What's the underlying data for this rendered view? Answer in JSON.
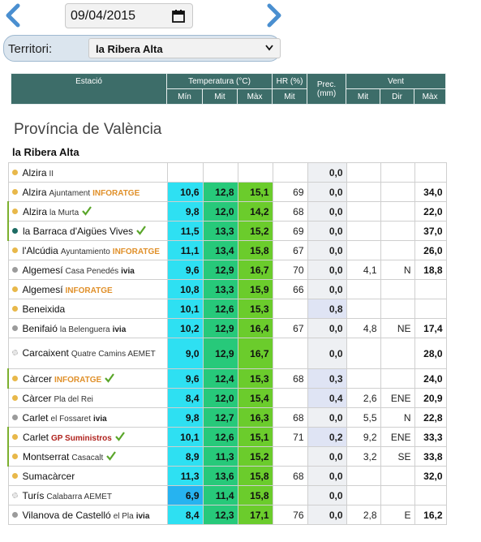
{
  "date": "09/04/2015",
  "territori": {
    "label": "Territori:",
    "selected": "la Ribera Alta"
  },
  "table_header": {
    "estacio": "Estació",
    "temperatura": "Temperatura (°C)",
    "hr": "HR (%)",
    "prec": "Prec.",
    "prec_unit": "(mm)",
    "vent": "Vent",
    "min": "Mín",
    "mit": "Mit",
    "max": "Màx",
    "hr_mit": "Mit",
    "vent_mit": "Mit",
    "vent_dir": "Dir",
    "vent_max": "Màx"
  },
  "region": "Província de València",
  "subregion": "la Ribera Alta",
  "colors": {
    "header": "#3d6d69",
    "min": "#22c9ee",
    "mit": "#24c574",
    "max": "#62c62a"
  },
  "rows": [
    {
      "name": "Alzira",
      "sub": "II",
      "agency": "",
      "dot": "#e8b84a",
      "min": "",
      "mit": "",
      "max": "",
      "hr": "",
      "prec": "0,0",
      "vmit": "",
      "vdir": "",
      "vmax": "",
      "check": false,
      "tall": false
    },
    {
      "name": "Alzira",
      "sub": "Ajuntament",
      "agency": "INFORATGE",
      "dot": "#e8b84a",
      "min": "10,6",
      "mit": "12,8",
      "max": "15,1",
      "hr": "69",
      "prec": "0,0",
      "vmit": "",
      "vdir": "",
      "vmax": "34,0",
      "check": false,
      "tall": false
    },
    {
      "name": "Alzira",
      "sub": "la Murta",
      "agency": "",
      "dot": "#e8b84a",
      "min": "9,8",
      "mit": "12,0",
      "max": "14,2",
      "hr": "68",
      "prec": "0,0",
      "vmit": "",
      "vdir": "",
      "vmax": "22,0",
      "check": true,
      "tall": false
    },
    {
      "name": "la Barraca d'Aigües Vives",
      "sub": "",
      "agency": "",
      "dot": "#1d6b63",
      "min": "11,5",
      "mit": "13,3",
      "max": "15,2",
      "hr": "69",
      "prec": "0,0",
      "vmit": "",
      "vdir": "",
      "vmax": "37,0",
      "check": true,
      "tall": false
    },
    {
      "name": "l'Alcúdia",
      "sub": "Ayuntamiento",
      "agency": "INFORATGE",
      "dot": "#e8b84a",
      "min": "11,1",
      "mit": "13,4",
      "max": "15,8",
      "hr": "67",
      "prec": "0,0",
      "vmit": "",
      "vdir": "",
      "vmax": "26,0",
      "check": false,
      "tall": false
    },
    {
      "name": "Algemesí",
      "sub": "Casa Penedés",
      "agency": "ivia",
      "dot": "#9b9b9b",
      "min": "9,6",
      "mit": "12,9",
      "max": "16,7",
      "hr": "70",
      "prec": "0,0",
      "vmit": "4,1",
      "vdir": "N",
      "vmax": "18,8",
      "check": false,
      "tall": false
    },
    {
      "name": "Algemesí",
      "sub": "",
      "agency": "INFORATGE",
      "dot": "#e8b84a",
      "min": "10,8",
      "mit": "13,3",
      "max": "15,9",
      "hr": "66",
      "prec": "0,0",
      "vmit": "",
      "vdir": "",
      "vmax": "",
      "check": false,
      "tall": false
    },
    {
      "name": "Beneixida",
      "sub": "",
      "agency": "",
      "dot": "#e8b84a",
      "min": "10,1",
      "mit": "12,6",
      "max": "15,3",
      "hr": "",
      "prec": "0,8",
      "vmit": "",
      "vdir": "",
      "vmax": "",
      "check": false,
      "tall": false
    },
    {
      "name": "Benifaió",
      "sub": "la Belenguera",
      "agency": "ivia",
      "dot": "#9b9b9b",
      "min": "10,2",
      "mit": "12,9",
      "max": "16,4",
      "hr": "67",
      "prec": "0,0",
      "vmit": "4,8",
      "vdir": "NE",
      "vmax": "17,4",
      "check": false,
      "tall": false
    },
    {
      "name": "Carcaixent",
      "sub": "Quatre Camins AEMET",
      "agency": "",
      "dot": "#e6e6e6",
      "min": "9,0",
      "mit": "12,9",
      "max": "16,7",
      "hr": "",
      "prec": "0,0",
      "vmit": "",
      "vdir": "",
      "vmax": "28,0",
      "check": false,
      "tall": true
    },
    {
      "name": "Càrcer",
      "sub": "",
      "agency": "INFORATGE",
      "dot": "#e8b84a",
      "min": "9,6",
      "mit": "12,4",
      "max": "15,3",
      "hr": "68",
      "prec": "0,3",
      "vmit": "",
      "vdir": "",
      "vmax": "24,0",
      "check": true,
      "tall": false
    },
    {
      "name": "Càrcer",
      "sub": "Pla del Rei",
      "agency": "",
      "dot": "#e8b84a",
      "min": "8,4",
      "mit": "12,0",
      "max": "15,4",
      "hr": "",
      "prec": "0,4",
      "vmit": "2,6",
      "vdir": "ENE",
      "vmax": "20,9",
      "check": false,
      "tall": false
    },
    {
      "name": "Carlet",
      "sub": "el Fossaret",
      "agency": "ivia",
      "dot": "#9b9b9b",
      "min": "9,8",
      "mit": "12,7",
      "max": "16,3",
      "hr": "68",
      "prec": "0,0",
      "vmit": "5,5",
      "vdir": "N",
      "vmax": "22,8",
      "check": false,
      "tall": false
    },
    {
      "name": "Carlet",
      "sub": "",
      "agency": "GP Suministros",
      "dot": "#e8b84a",
      "min": "10,1",
      "mit": "12,6",
      "max": "15,1",
      "hr": "71",
      "prec": "0,2",
      "vmit": "9,2",
      "vdir": "ENE",
      "vmax": "33,3",
      "check": true,
      "tall": false
    },
    {
      "name": "Montserrat",
      "sub": "Casacalt",
      "agency": "",
      "dot": "#e8b84a",
      "min": "8,9",
      "mit": "11,3",
      "max": "15,2",
      "hr": "",
      "prec": "0,0",
      "vmit": "3,2",
      "vdir": "SE",
      "vmax": "33,8",
      "check": true,
      "tall": false
    },
    {
      "name": "Sumacàrcer",
      "sub": "",
      "agency": "",
      "dot": "#e8b84a",
      "min": "11,3",
      "mit": "13,6",
      "max": "15,8",
      "hr": "68",
      "prec": "0,0",
      "vmit": "",
      "vdir": "",
      "vmax": "32,0",
      "check": false,
      "tall": false
    },
    {
      "name": "Turís",
      "sub": "Calabarra AEMET",
      "agency": "",
      "dot": "#e6e6e6",
      "min": "6,9",
      "mit": "11,4",
      "max": "15,8",
      "hr": "",
      "prec": "0,0",
      "vmit": "",
      "vdir": "",
      "vmax": "",
      "check": false,
      "tall": false
    },
    {
      "name": "Vilanova de Castelló",
      "sub": "el Pla",
      "agency": "ivia",
      "dot": "#9b9b9b",
      "min": "8,4",
      "mit": "12,3",
      "max": "17,1",
      "hr": "76",
      "prec": "0,0",
      "vmit": "2,8",
      "vdir": "E",
      "vmax": "16,2",
      "check": false,
      "tall": false
    }
  ]
}
